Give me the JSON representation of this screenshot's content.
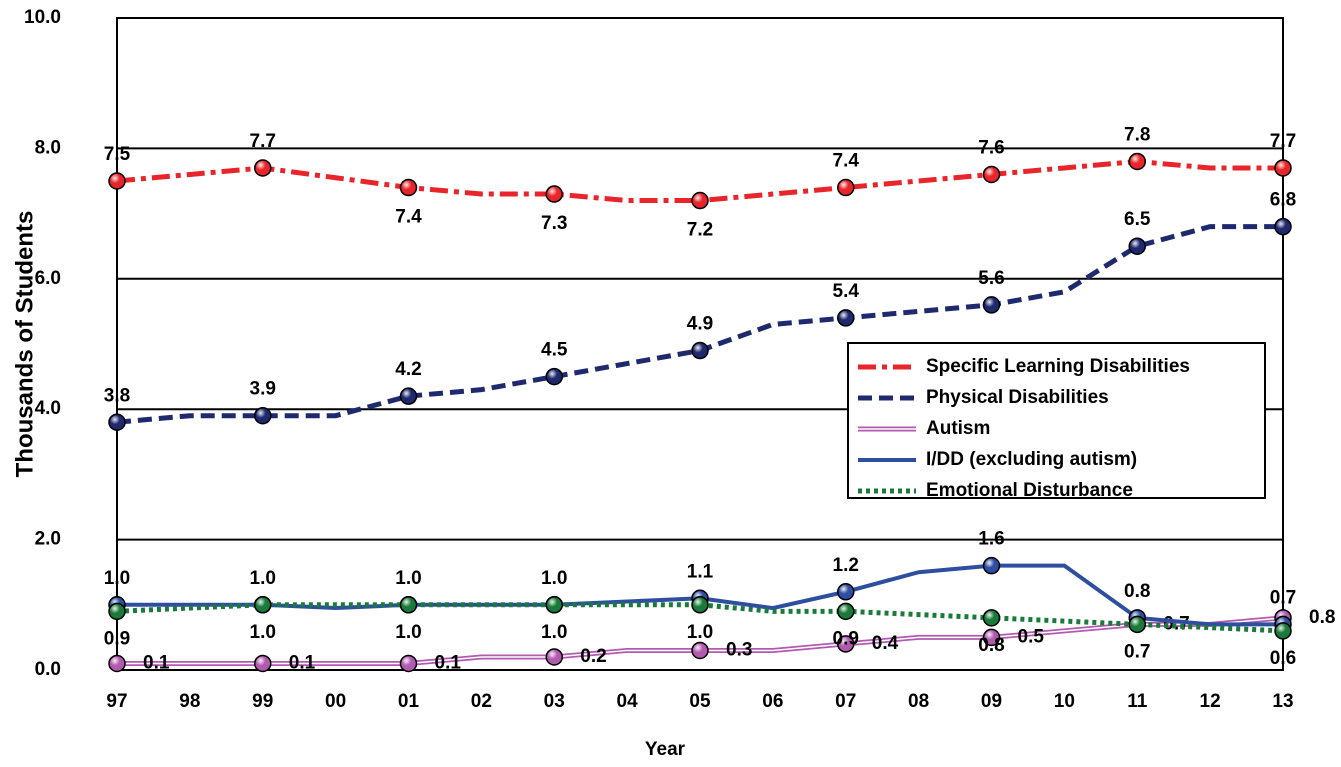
{
  "chart_data": {
    "type": "line",
    "x_label": "Year",
    "y_label": "Thousands of Students",
    "categories": [
      "97",
      "98",
      "99",
      "00",
      "01",
      "02",
      "03",
      "04",
      "05",
      "06",
      "07",
      "08",
      "09",
      "10",
      "11",
      "12",
      "13"
    ],
    "ylim": [
      0,
      10
    ],
    "yticks": [
      {
        "value": 0,
        "label": "0.0"
      },
      {
        "value": 2,
        "label": "2.0"
      },
      {
        "value": 4,
        "label": "4.0"
      },
      {
        "value": 6,
        "label": "6.0"
      },
      {
        "value": 8,
        "label": "8.0"
      },
      {
        "value": 10,
        "label": "10.0"
      }
    ],
    "grid": true,
    "legend": "right",
    "series": [
      {
        "name": "Specific Learning Disabilities",
        "color": "#e8252a",
        "style": "dashdot",
        "values": [
          7.5,
          7.6,
          7.7,
          7.55,
          7.4,
          7.3,
          7.3,
          7.2,
          7.2,
          7.3,
          7.4,
          7.5,
          7.6,
          7.7,
          7.8,
          7.7,
          7.7
        ],
        "value_labels": [
          "7.5",
          null,
          "7.7",
          null,
          "7.4",
          null,
          "7.3",
          null,
          "7.2",
          null,
          "7.4",
          null,
          "7.6",
          null,
          "7.8",
          null,
          "7.7"
        ]
      },
      {
        "name": "Physical Disabilities",
        "color": "#1f2a6e",
        "style": "dashed",
        "values": [
          3.8,
          3.9,
          3.9,
          3.9,
          4.2,
          4.3,
          4.5,
          4.7,
          4.9,
          5.3,
          5.4,
          5.5,
          5.6,
          5.8,
          6.5,
          6.8,
          6.8
        ],
        "value_labels": [
          "3.8",
          null,
          "3.9",
          null,
          "4.2",
          null,
          "4.5",
          null,
          "4.9",
          null,
          "5.4",
          null,
          "5.6",
          null,
          "6.5",
          null,
          "6.8"
        ]
      },
      {
        "name": "Autism",
        "color": "#b25ab0",
        "style": "double",
        "values": [
          0.1,
          0.1,
          0.1,
          0.1,
          0.1,
          0.2,
          0.2,
          0.3,
          0.3,
          0.3,
          0.4,
          0.5,
          0.5,
          0.6,
          0.7,
          0.7,
          0.8
        ],
        "value_labels": [
          "0.1",
          null,
          "0.1",
          null,
          "0.1",
          null,
          "0.2",
          null,
          "0.3",
          null,
          "0.4",
          null,
          "0.5",
          null,
          "0.7",
          null,
          "0.8"
        ]
      },
      {
        "name": "I/DD (excluding autism)",
        "color": "#2e4ea0",
        "style": "solid",
        "values": [
          1.0,
          1.0,
          1.0,
          0.95,
          1.0,
          1.0,
          1.0,
          1.05,
          1.1,
          0.95,
          1.2,
          1.5,
          1.6,
          1.6,
          0.8,
          0.7,
          0.7
        ],
        "value_labels": [
          "1.0",
          null,
          "1.0",
          null,
          "1.0",
          null,
          "1.0",
          null,
          "1.1",
          null,
          "1.2",
          null,
          "1.6",
          null,
          "0.8",
          null,
          "0.7"
        ]
      },
      {
        "name": "Emotional Disturbance",
        "color": "#1a7a3a",
        "style": "dotted",
        "values": [
          0.9,
          0.95,
          1.0,
          1.0,
          1.0,
          1.0,
          1.0,
          1.0,
          1.0,
          0.9,
          0.9,
          0.85,
          0.8,
          0.75,
          0.7,
          0.65,
          0.6
        ],
        "value_labels": [
          "0.9",
          null,
          "1.0",
          null,
          "1.0",
          null,
          "1.0",
          null,
          "1.0",
          null,
          "0.9",
          null,
          "0.8",
          null,
          "0.7",
          null,
          "0.6"
        ]
      }
    ]
  }
}
